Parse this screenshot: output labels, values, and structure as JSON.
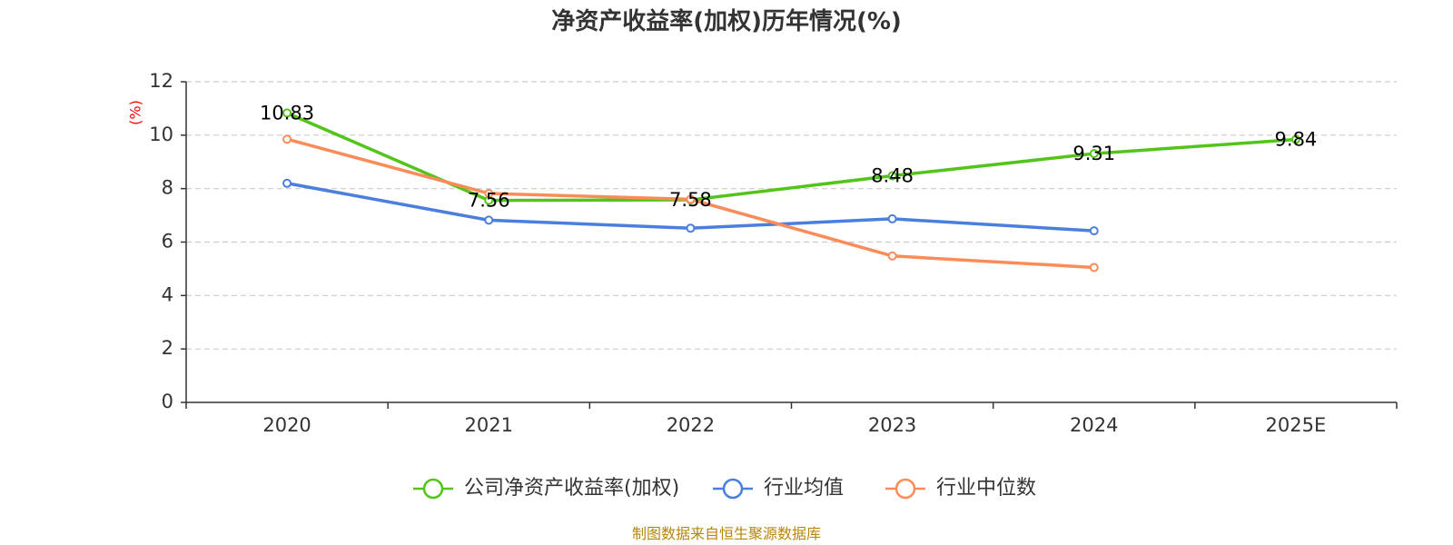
{
  "chart_data": {
    "type": "line",
    "title": "净资产收益率(加权)历年情况(%)",
    "ylabel": "(%)",
    "xlabel": "",
    "categories": [
      "2020",
      "2021",
      "2022",
      "2023",
      "2024",
      "2025E"
    ],
    "ylim": [
      0,
      12
    ],
    "yticks": [
      0,
      2,
      4,
      6,
      8,
      10,
      12
    ],
    "grid": true,
    "legend_position": "bottom",
    "series": [
      {
        "name": "公司净资产收益率(加权)",
        "color": "#52c41a",
        "values": [
          10.83,
          7.56,
          7.58,
          8.48,
          9.31,
          9.84
        ],
        "data_labels": [
          "10.83",
          "7.56",
          "7.58",
          "8.48",
          "9.31",
          "9.84"
        ]
      },
      {
        "name": "行业均值",
        "color": "#4a7fdd",
        "values": [
          8.2,
          6.82,
          6.52,
          6.87,
          6.42,
          null
        ]
      },
      {
        "name": "行业中位数",
        "color": "#fa8c5a",
        "values": [
          9.85,
          7.82,
          7.6,
          5.48,
          5.05,
          null
        ]
      }
    ],
    "source": "制图数据来自恒生聚源数据库",
    "colors": {
      "axis": "#333333",
      "grid": "#cccccc",
      "unit": "#ff0000",
      "source": "#b8860b"
    }
  }
}
